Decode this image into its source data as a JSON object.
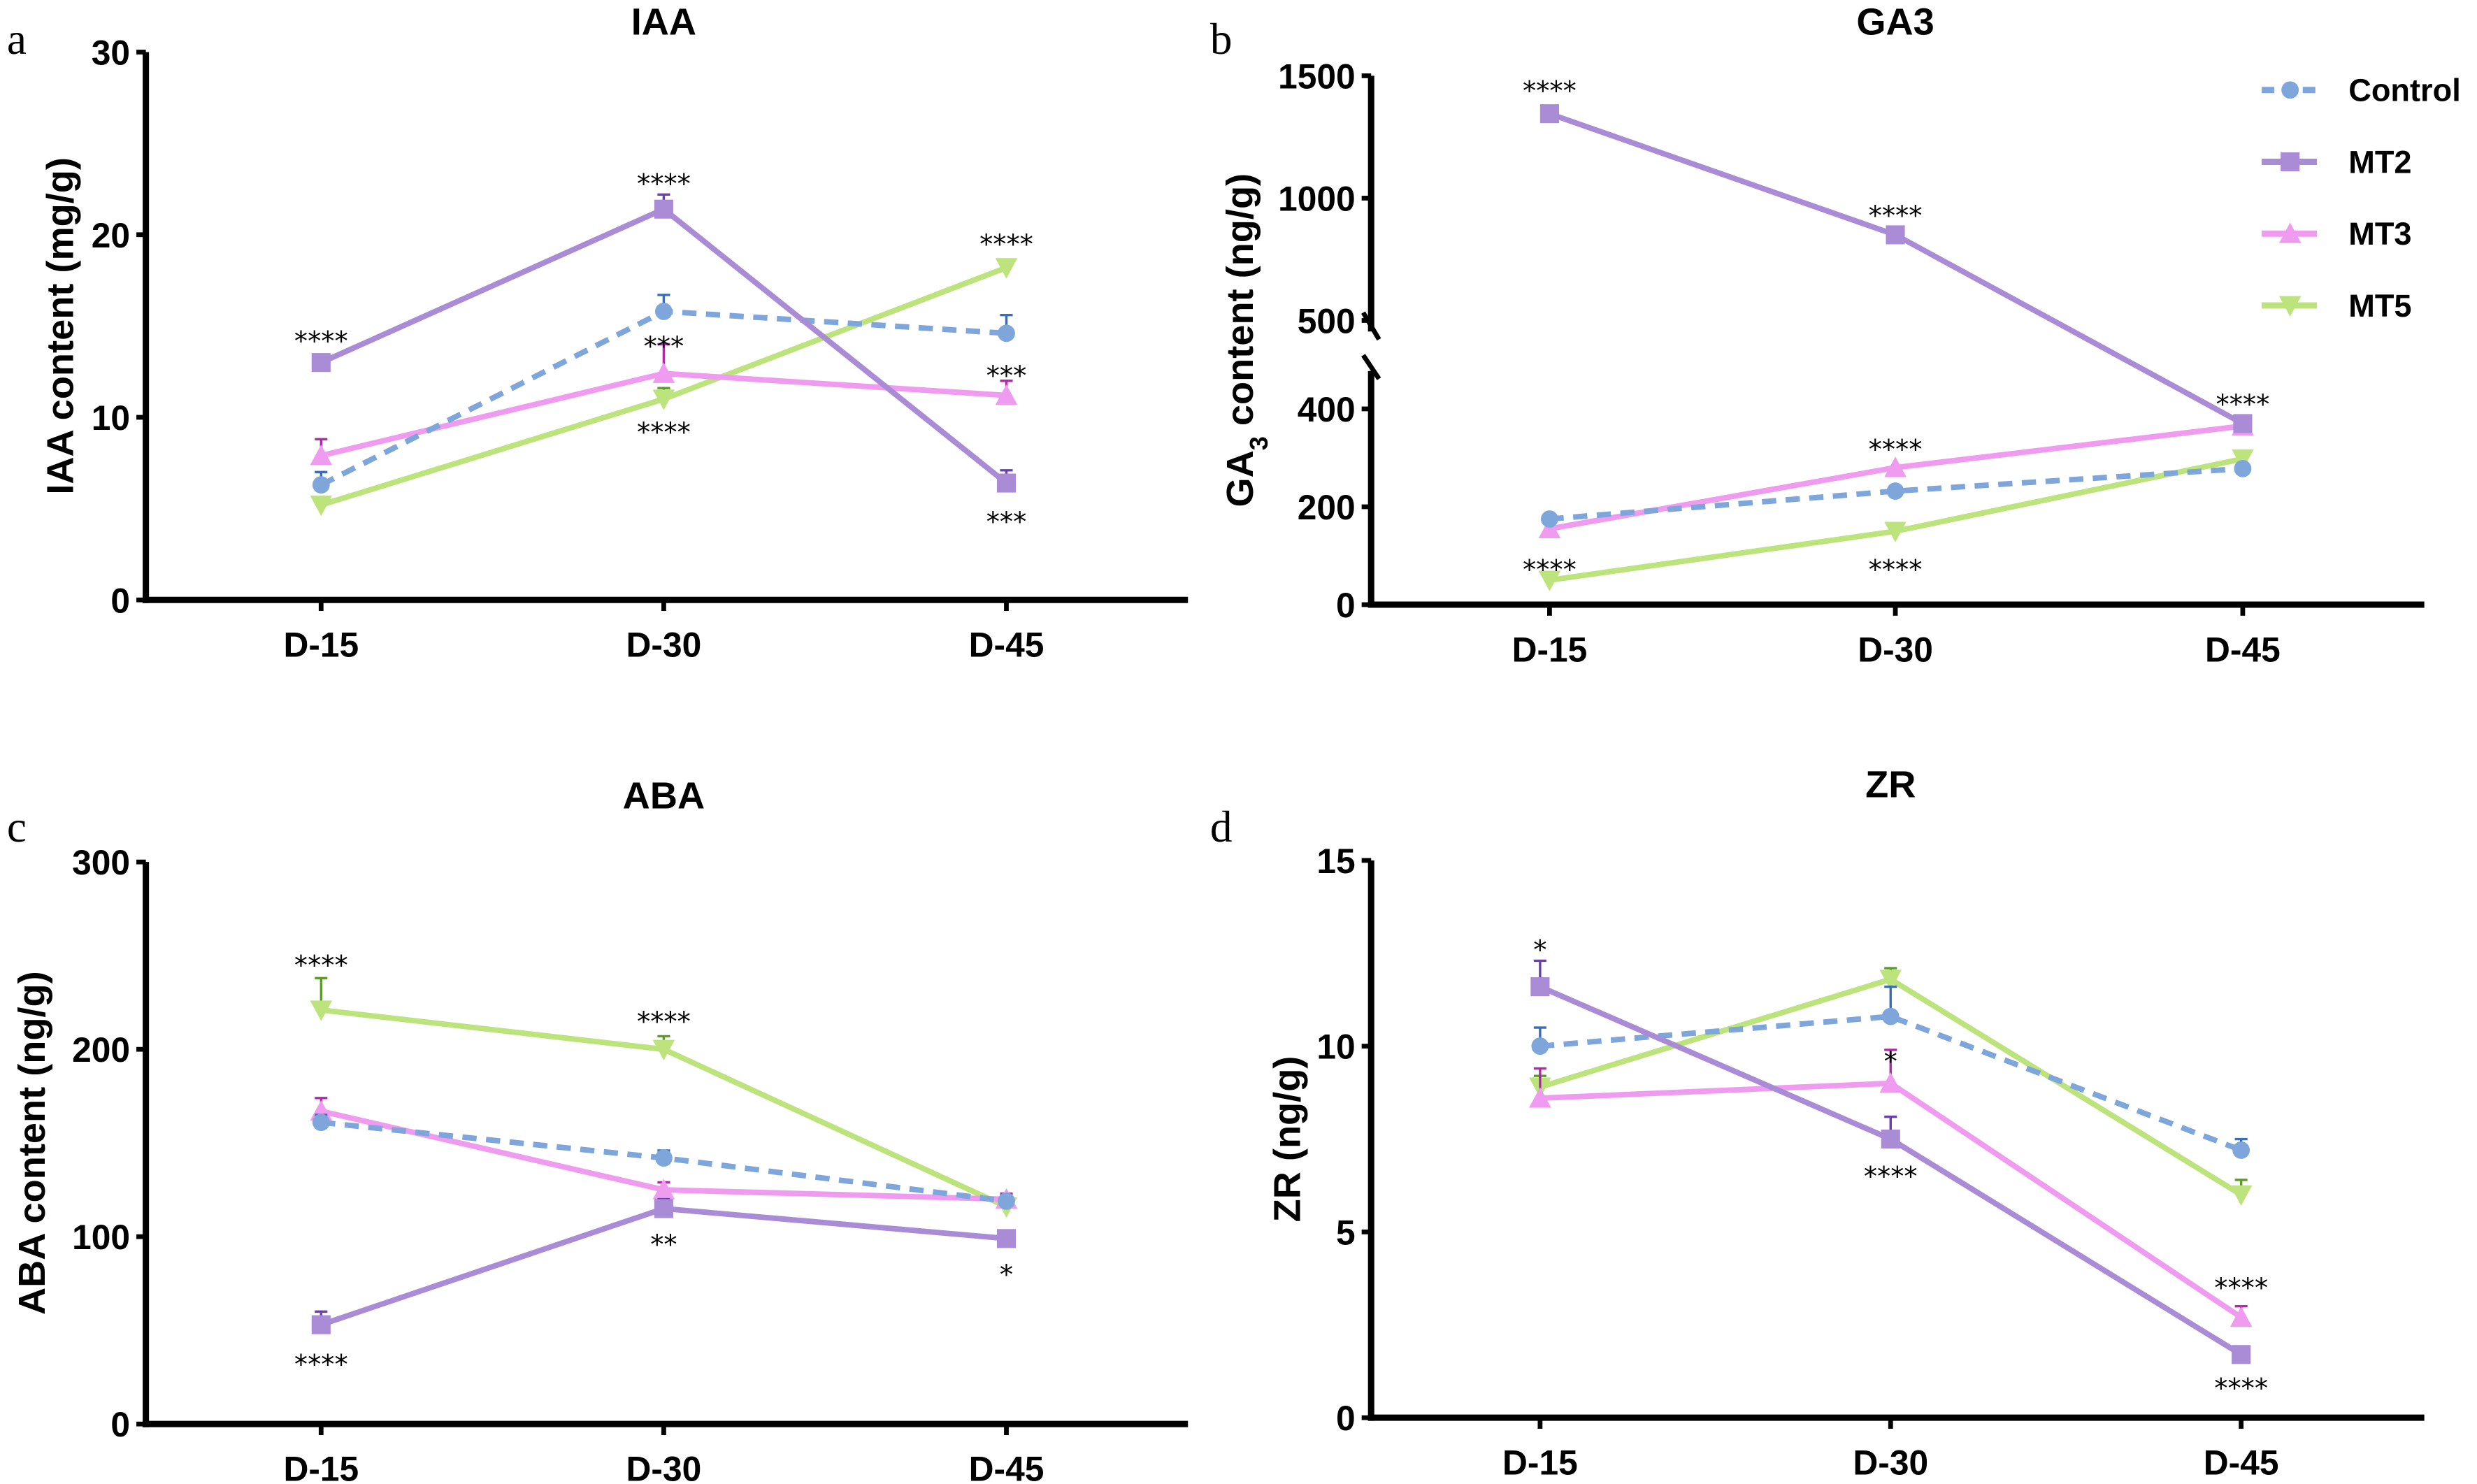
{
  "colors": {
    "Control": "#7ea6da",
    "MT2": "#a98bd6",
    "MT3": "#ef9bef",
    "MT5": "#bce37c",
    "err": {
      "Control": "#3a6db5",
      "MT2": "#6a3fae",
      "MT3": "#b02aa8",
      "MT5": "#5c9a2a"
    }
  },
  "legend": {
    "position": "top-right of panel b",
    "items": [
      "Control",
      "MT2",
      "MT3",
      "MT5"
    ]
  },
  "chart_data": [
    {
      "panel": "a",
      "type": "line",
      "title": "IAA",
      "ylabel": "IAA content (mg/g)",
      "categories": [
        "D-15",
        "D-30",
        "D-45"
      ],
      "ylim": [
        0,
        30
      ],
      "yticks": [
        0,
        10,
        20,
        30
      ],
      "series": [
        {
          "name": "Control",
          "values": [
            6.3,
            15.8,
            14.6
          ],
          "err": [
            0.7,
            0.9,
            1.0
          ],
          "dashed": true
        },
        {
          "name": "MT2",
          "values": [
            13.0,
            21.4,
            6.4
          ],
          "err": [
            0.3,
            0.8,
            0.7
          ]
        },
        {
          "name": "MT3",
          "values": [
            7.9,
            12.4,
            11.2
          ],
          "err": [
            0.9,
            1.6,
            0.8
          ]
        },
        {
          "name": "MT5",
          "values": [
            5.2,
            11.0,
            18.2
          ],
          "err": [
            0.3,
            0.6,
            0.3
          ]
        }
      ],
      "annotations": [
        {
          "text": "****",
          "x": "D-15",
          "y": 14.2
        },
        {
          "text": "****",
          "x": "D-30",
          "y": 22.8
        },
        {
          "text": "***",
          "x": "D-30",
          "y": 13.9
        },
        {
          "text": "****",
          "x": "D-30",
          "y": 9.2
        },
        {
          "text": "****",
          "x": "D-45",
          "y": 19.5
        },
        {
          "text": "***",
          "x": "D-45",
          "y": 12.3
        },
        {
          "text": "***",
          "x": "D-45",
          "y": 4.3
        }
      ]
    },
    {
      "panel": "b",
      "type": "line",
      "title": "GA3",
      "ylabel": "GA3 content (ng/g)",
      "categories": [
        "D-15",
        "D-30",
        "D-45"
      ],
      "ylim": [
        0,
        1500
      ],
      "axis_break": [
        450,
        500
      ],
      "yticks": [
        0,
        200,
        400,
        500,
        1000,
        1500
      ],
      "series": [
        {
          "name": "Control",
          "values": [
            175,
            232,
            278
          ],
          "dashed": true
        },
        {
          "name": "MT2",
          "values": [
            1345,
            850,
            370
          ]
        },
        {
          "name": "MT3",
          "values": [
            155,
            280,
            365
          ]
        },
        {
          "name": "MT5",
          "values": [
            50,
            150,
            298
          ]
        }
      ],
      "annotations": [
        {
          "text": "****",
          "x": "D-15",
          "y": 1440
        },
        {
          "text": "****",
          "x": "D-30",
          "y": 930
        },
        {
          "text": "****",
          "x": "D-45",
          "y": 410
        },
        {
          "text": "****",
          "x": "D-30",
          "y": 318
        },
        {
          "text": "****",
          "x": "D-15",
          "y": 72
        },
        {
          "text": "****",
          "x": "D-30",
          "y": 72
        }
      ]
    },
    {
      "panel": "c",
      "type": "line",
      "title": "ABA",
      "ylabel": "ABA content (ng/g)",
      "categories": [
        "D-15",
        "D-30",
        "D-45"
      ],
      "ylim": [
        0,
        300
      ],
      "yticks": [
        0,
        100,
        200,
        300
      ],
      "series": [
        {
          "name": "Control",
          "values": [
            161,
            142,
            119
          ],
          "err": [
            4,
            4,
            3
          ],
          "dashed": true
        },
        {
          "name": "MT2",
          "values": [
            53,
            115,
            99
          ],
          "err": [
            7,
            5,
            4
          ]
        },
        {
          "name": "MT3",
          "values": [
            167,
            125,
            120
          ],
          "err": [
            7,
            4,
            3
          ]
        },
        {
          "name": "MT5",
          "values": [
            221,
            200,
            116
          ],
          "err": [
            17,
            7,
            4
          ]
        }
      ],
      "annotations": [
        {
          "text": "****",
          "x": "D-15",
          "y": 245
        },
        {
          "text": "****",
          "x": "D-15",
          "y": 32
        },
        {
          "text": "****",
          "x": "D-30",
          "y": 215
        },
        {
          "text": "**",
          "x": "D-30",
          "y": 96
        },
        {
          "text": "*",
          "x": "D-45",
          "y": 80
        }
      ]
    },
    {
      "panel": "d",
      "type": "line",
      "title": "ZR",
      "ylabel": "ZR (ng/g)",
      "categories": [
        "D-15",
        "D-30",
        "D-45"
      ],
      "ylim": [
        0,
        15
      ],
      "yticks": [
        0,
        5,
        10,
        15
      ],
      "series": [
        {
          "name": "Control",
          "values": [
            10.0,
            10.8,
            7.2
          ],
          "err": [
            0.5,
            0.8,
            0.3
          ],
          "dashed": true
        },
        {
          "name": "MT2",
          "values": [
            11.6,
            7.5,
            1.7
          ],
          "err": [
            0.7,
            0.6,
            0.1
          ]
        },
        {
          "name": "MT3",
          "values": [
            8.6,
            9.0,
            2.7
          ],
          "err": [
            0.8,
            0.9,
            0.3
          ]
        },
        {
          "name": "MT5",
          "values": [
            8.9,
            11.8,
            6.0
          ],
          "err": [
            0.3,
            0.3,
            0.4
          ]
        }
      ],
      "annotations": [
        {
          "text": "*",
          "x": "D-15",
          "y": 12.6
        },
        {
          "text": "*",
          "x": "D-30",
          "y": 9.6
        },
        {
          "text": "****",
          "x": "D-30",
          "y": 6.5
        },
        {
          "text": "****",
          "x": "D-45",
          "y": 3.5
        },
        {
          "text": "****",
          "x": "D-45",
          "y": 0.8
        }
      ]
    }
  ]
}
